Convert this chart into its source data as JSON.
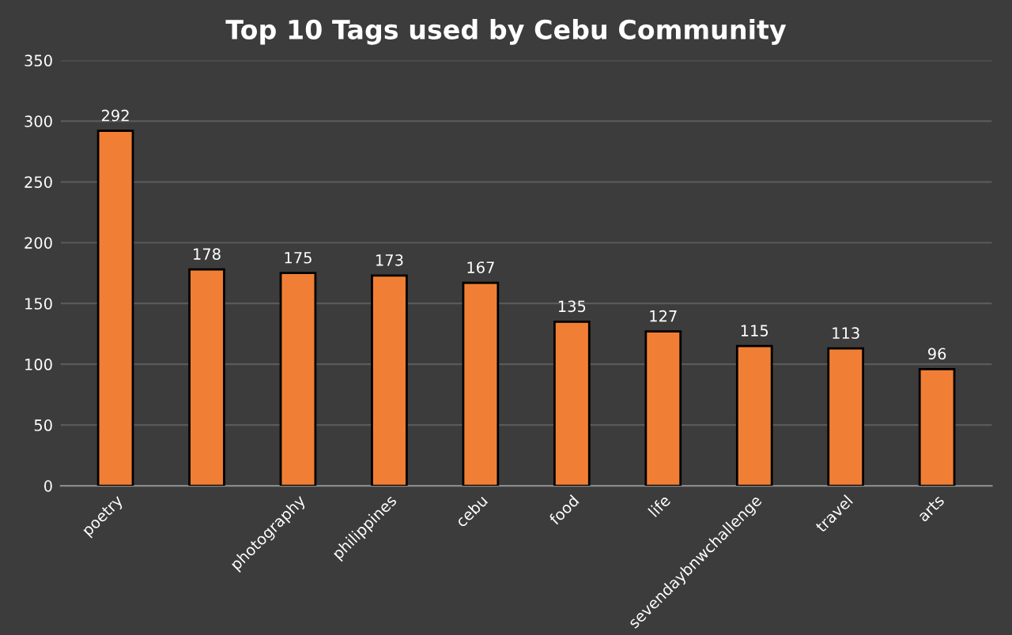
{
  "chart_data": {
    "type": "bar",
    "title": "Top 10 Tags used by Cebu Community",
    "categories": [
      "poetry",
      null,
      "photography",
      "philippines",
      "cebu",
      "food",
      "life",
      "sevendaybnwchallenge",
      "travel",
      "arts"
    ],
    "values": [
      292,
      178,
      175,
      173,
      167,
      135,
      127,
      115,
      113,
      96
    ],
    "color": "#f07f35",
    "data_labels": true,
    "grid": "y",
    "ylim": [
      0,
      350
    ],
    "yticks": [
      0,
      50,
      100,
      150,
      200,
      250,
      300,
      350
    ]
  }
}
